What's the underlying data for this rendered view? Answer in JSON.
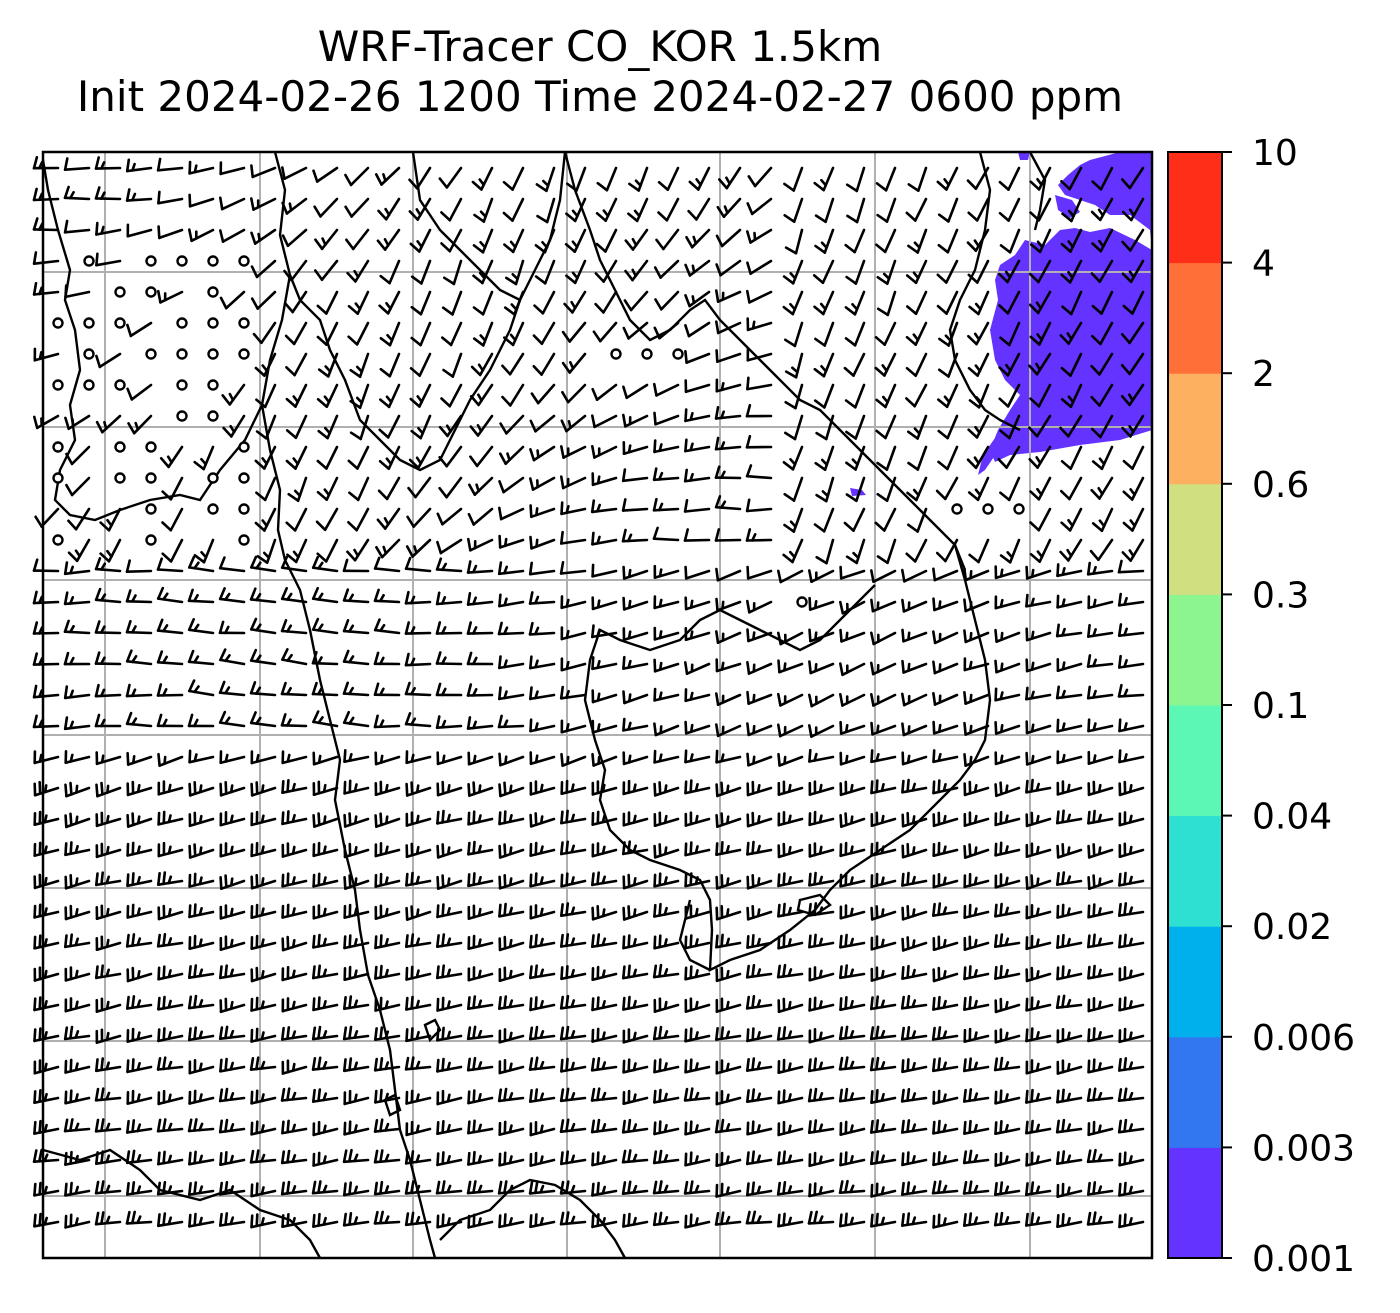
{
  "title": {
    "line1": "WRF-Tracer CO_KOR 1.5km",
    "line2": "Init 2024-02-26 1200 Time 2024-02-27 0600 ppm"
  },
  "colorbar": {
    "levels": [
      "0.001",
      "0.003",
      "0.006",
      "0.02",
      "0.04",
      "0.1",
      "0.3",
      "0.6",
      "2",
      "4",
      "10"
    ],
    "colors": [
      "#6433ff",
      "#3277f0",
      "#00b0ec",
      "#2de0d2",
      "#5cf7b4",
      "#8cf590",
      "#d0e080",
      "#fdb060",
      "#ff7038",
      "#ff2e18"
    ]
  },
  "tracer_field": {
    "region": "northeast corner of domain (far northeast of Korea / Sea of Japan)",
    "shown_levels": [
      "0.001-0.003"
    ],
    "color": "#6433ff"
  },
  "map_features": {
    "coastlines": true,
    "gridlines": true,
    "wind_barbs": true,
    "calm_circles": true
  }
}
